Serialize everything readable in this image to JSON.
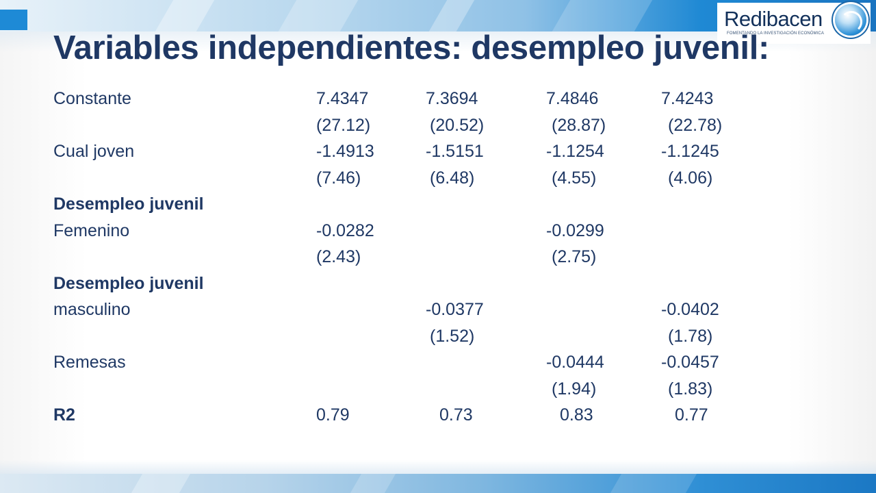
{
  "logo": {
    "name": "Redibacen",
    "tagline": "FOMENTANDO LA INVESTIGACIÓN ECONÓMICA"
  },
  "title": "Variables independientes: desempleo juvenil:",
  "rows": [
    {
      "label": "Constante",
      "bold": false,
      "c1": "7.4347",
      "c2": "7.3694",
      "c3": "7.4846",
      "c4": "7.4243"
    },
    {
      "label": "",
      "bold": false,
      "c1": "(27.12)",
      "c2": "(20.52)",
      "c3": "(28.87)",
      "c4": "(22.78)"
    },
    {
      "label": "Cual joven",
      "bold": false,
      "c1": "-1.4913",
      "c2": "-1.5151",
      "c3": "-1.1254",
      "c4": "-1.1245"
    },
    {
      "label": "",
      "bold": false,
      "c1": "(7.46)",
      "c2": "(6.48)",
      "c3": "(4.55)",
      "c4": "(4.06)"
    },
    {
      "label": "Desempleo juvenil",
      "bold": true,
      "c1": "",
      "c2": "",
      "c3": "",
      "c4": ""
    },
    {
      "label": "Femenino",
      "bold": false,
      "c1": "-0.0282",
      "c2": "",
      "c3": "-0.0299",
      "c4": ""
    },
    {
      "label": "",
      "bold": false,
      "c1": "(2.43)",
      "c2": "",
      "c3": "(2.75)",
      "c4": ""
    },
    {
      "label": "Desempleo juvenil",
      "bold": true,
      "c1": "",
      "c2": "",
      "c3": "",
      "c4": ""
    },
    {
      "label": "masculino",
      "bold": false,
      "c1": "",
      "c2": "-0.0377",
      "c3": "",
      "c4": "-0.0402"
    },
    {
      "label": "",
      "bold": false,
      "c1": "",
      "c2": "(1.52)",
      "c3": "",
      "c4": "(1.78)"
    },
    {
      "label": "Remesas",
      "bold": false,
      "c1": "",
      "c2": "",
      "c3": "-0.0444",
      "c4": "-0.0457"
    },
    {
      "label": "",
      "bold": false,
      "c1": "",
      "c2": "",
      "c3": "(1.94)",
      "c4": "(1.83)"
    },
    {
      "label": "R2",
      "bold": true,
      "c1": "0.79",
      "c2": "0.73",
      "c3": "0.83",
      "c4": "0.77"
    }
  ],
  "colors": {
    "text": "#1f3864",
    "accent": "#1e8ad6"
  }
}
